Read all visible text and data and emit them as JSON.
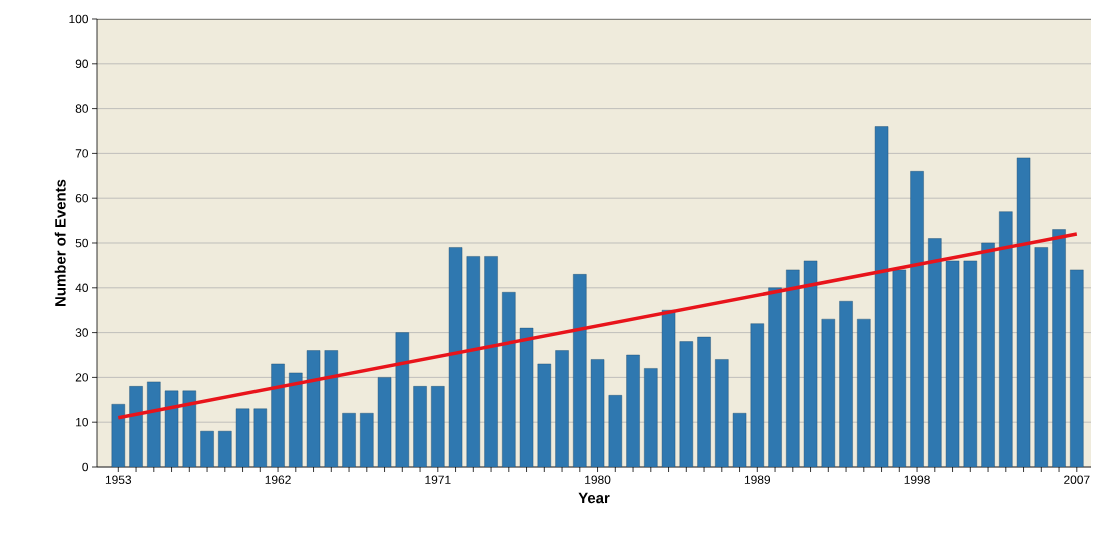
{
  "chart_data": {
    "type": "bar",
    "xlabel": "Year",
    "ylabel": "Number of Events",
    "x": [
      1953,
      1954,
      1955,
      1956,
      1957,
      1958,
      1959,
      1960,
      1961,
      1962,
      1963,
      1964,
      1965,
      1966,
      1967,
      1968,
      1969,
      1970,
      1971,
      1972,
      1973,
      1974,
      1975,
      1976,
      1977,
      1978,
      1979,
      1980,
      1981,
      1982,
      1983,
      1984,
      1985,
      1986,
      1987,
      1988,
      1989,
      1990,
      1991,
      1992,
      1993,
      1994,
      1995,
      1996,
      1997,
      1998,
      1999,
      2000,
      2001,
      2002,
      2003,
      2004,
      2005,
      2006,
      2007
    ],
    "series": [
      {
        "color": "#2f78b0",
        "values": [
          14,
          18,
          19,
          17,
          17,
          8,
          8,
          13,
          13,
          23,
          21,
          26,
          26,
          12,
          12,
          20,
          30,
          18,
          18,
          49,
          47,
          47,
          39,
          31,
          23,
          26,
          43,
          24,
          16,
          25,
          22,
          35,
          28,
          29,
          24,
          12,
          32,
          40,
          44,
          46,
          33,
          37,
          33,
          76,
          44,
          66,
          51,
          46,
          46,
          50,
          57,
          69,
          49,
          53,
          44
        ]
      },
      {
        "type": "line",
        "color": "#e8141b",
        "x": [
          1953,
          2007
        ],
        "values": [
          11,
          52
        ]
      }
    ],
    "xlim": [
      1951.8,
      2007.8
    ],
    "ylim": [
      0,
      100
    ],
    "xticks": [
      1953,
      {
        "value": 1954,
        "label": null
      },
      {
        "value": 1955,
        "label": null
      },
      {
        "value": 1956,
        "label": null
      },
      {
        "value": 1957,
        "label": null
      },
      {
        "value": 1958,
        "label": null
      },
      {
        "value": 1959,
        "label": null
      },
      {
        "value": 1960,
        "label": null
      },
      {
        "value": 1961,
        "label": null
      },
      1962,
      {
        "value": 1963,
        "label": null
      },
      {
        "value": 1964,
        "label": null
      },
      {
        "value": 1965,
        "label": null
      },
      {
        "value": 1966,
        "label": null
      },
      {
        "value": 1967,
        "label": null
      },
      {
        "value": 1968,
        "label": null
      },
      {
        "value": 1969,
        "label": null
      },
      {
        "value": 1970,
        "label": null
      },
      1971,
      {
        "value": 1972,
        "label": null
      },
      {
        "value": 1973,
        "label": null
      },
      {
        "value": 1974,
        "label": null
      },
      {
        "value": 1975,
        "label": null
      },
      {
        "value": 1976,
        "label": null
      },
      {
        "value": 1977,
        "label": null
      },
      {
        "value": 1978,
        "label": null
      },
      {
        "value": 1979,
        "label": null
      },
      1980,
      {
        "value": 1981,
        "label": null
      },
      {
        "value": 1982,
        "label": null
      },
      {
        "value": 1983,
        "label": null
      },
      {
        "value": 1984,
        "label": null
      },
      {
        "value": 1985,
        "label": null
      },
      {
        "value": 1986,
        "label": null
      },
      {
        "value": 1987,
        "label": null
      },
      {
        "value": 1988,
        "label": null
      },
      1989,
      {
        "value": 1990,
        "label": null
      },
      {
        "value": 1991,
        "label": null
      },
      {
        "value": 1992,
        "label": null
      },
      {
        "value": 1993,
        "label": null
      },
      {
        "value": 1994,
        "label": null
      },
      {
        "value": 1995,
        "label": null
      },
      {
        "value": 1996,
        "label": null
      },
      {
        "value": 1997,
        "label": null
      },
      1998,
      {
        "value": 1999,
        "label": null
      },
      {
        "value": 2000,
        "label": null
      },
      {
        "value": 2001,
        "label": null
      },
      {
        "value": 2002,
        "label": null
      },
      {
        "value": 2003,
        "label": null
      },
      {
        "value": 2004,
        "label": null
      },
      {
        "value": 2005,
        "label": null
      },
      {
        "value": 2006,
        "label": null
      },
      2007
    ],
    "yticks": [
      0,
      10,
      20,
      30,
      40,
      50,
      60,
      70,
      80,
      90,
      100
    ],
    "grid": "y"
  }
}
